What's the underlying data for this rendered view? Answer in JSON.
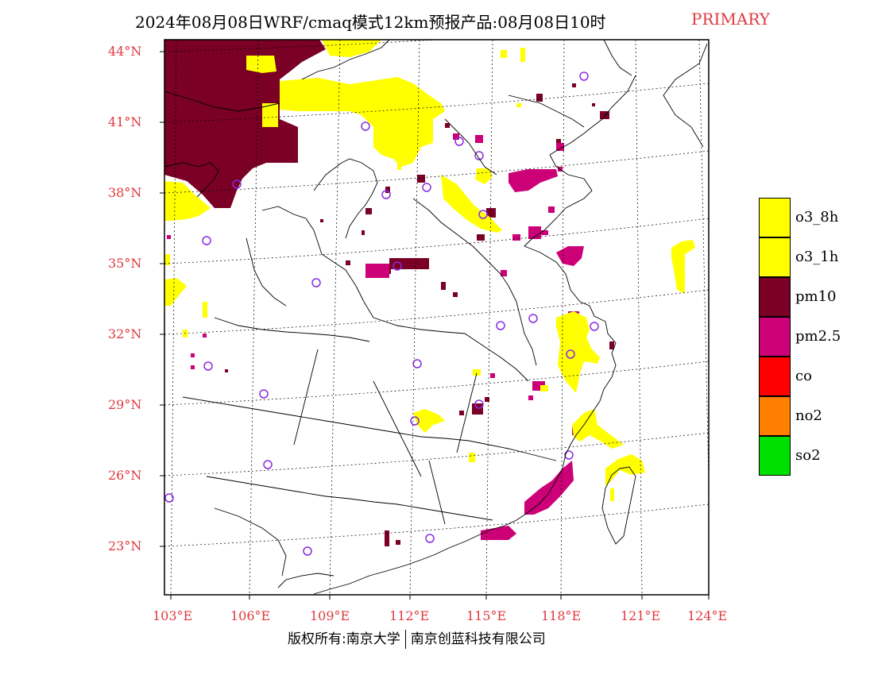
{
  "title": {
    "main": "2024年08月08日WRF/cmaq模式12km预报产品:08月08日10时",
    "tag": "PRIMARY"
  },
  "colors": {
    "o3_8h": "#ffff00",
    "o3_1h": "#ffff00",
    "pm10": "#7a0026",
    "pm25": "#cc0077",
    "co": "#ff0000",
    "no2": "#ff7f00",
    "so2": "#00e000",
    "station": "#8a2be2",
    "axis_label": "#e0393e"
  },
  "axes": {
    "lat_labels": [
      "44°N",
      "41°N",
      "38°N",
      "35°N",
      "32°N",
      "29°N",
      "26°N",
      "23°N"
    ],
    "lon_labels": [
      "103°E",
      "106°E",
      "109°E",
      "112°E",
      "115°E",
      "118°E",
      "121°E",
      "124°E"
    ]
  },
  "legend": [
    {
      "key": "o3_8h",
      "label": "o3_8h",
      "color": "#ffff00"
    },
    {
      "key": "o3_1h",
      "label": "o3_1h",
      "color": "#ffff00"
    },
    {
      "key": "pm10",
      "label": "pm10",
      "color": "#7a0026"
    },
    {
      "key": "pm25",
      "label": "pm2.5",
      "color": "#cc0077"
    },
    {
      "key": "co",
      "label": "co",
      "color": "#ff0000"
    },
    {
      "key": "no2",
      "label": "no2",
      "color": "#ff7f00"
    },
    {
      "key": "so2",
      "label": "so2",
      "color": "#00e000"
    }
  ],
  "footer": {
    "left": "版权所有:南京大学",
    "right": "南京创蓝科技有限公司"
  }
}
